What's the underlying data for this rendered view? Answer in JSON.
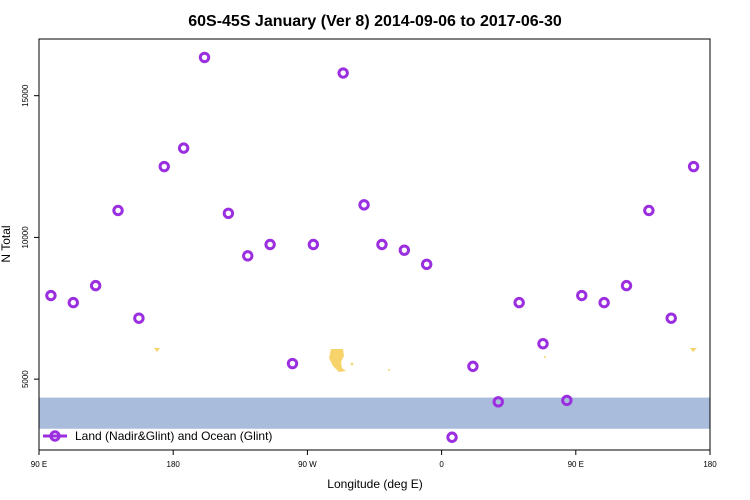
{
  "chart_data": {
    "type": "scatter",
    "title": "60S-45S January (Ver 8)   2014-09-06 to 2017-06-30",
    "xlabel": "Longitude (deg E)",
    "ylabel": "N Total",
    "x_axis": {
      "range_deg_east": [
        90,
        540
      ],
      "tick_values_deg_east": [
        90,
        180,
        270,
        360,
        450,
        540
      ],
      "tick_labels": [
        "90 E",
        "180",
        "90 W",
        "0",
        "90 E",
        "180"
      ]
    },
    "y_axis": {
      "scale": "linear",
      "range": [
        2500,
        17000
      ],
      "tick_values": [
        5000,
        10000,
        15000
      ],
      "tick_labels": [
        "5000",
        "10000",
        "15000"
      ]
    },
    "grid": false,
    "legend": {
      "position": "bottom-left",
      "entries": [
        "Land (Nadir&Glint) and Ocean (Glint)"
      ]
    },
    "series": [
      {
        "name": "Land (Nadir&Glint) and Ocean (Glint)",
        "color": "#9b2fe0",
        "marker": "open-circle",
        "points": [
          {
            "lon": 98,
            "value": 7950
          },
          {
            "lon": 113,
            "value": 7700
          },
          {
            "lon": 128,
            "value": 8300
          },
          {
            "lon": 143,
            "value": 10950
          },
          {
            "lon": 157,
            "value": 7150
          },
          {
            "lon": 174,
            "value": 12500
          },
          {
            "lon": 187,
            "value": 13150
          },
          {
            "lon": 201,
            "value": 16350
          },
          {
            "lon": 217,
            "value": 10850
          },
          {
            "lon": 230,
            "value": 9350
          },
          {
            "lon": 245,
            "value": 9750
          },
          {
            "lon": 260,
            "value": 5550
          },
          {
            "lon": 274,
            "value": 9750
          },
          {
            "lon": 294,
            "value": 15800
          },
          {
            "lon": 308,
            "value": 11150
          },
          {
            "lon": 320,
            "value": 9750
          },
          {
            "lon": 335,
            "value": 9550
          },
          {
            "lon": 350,
            "value": 9050
          },
          {
            "lon": 367,
            "value": 2950
          },
          {
            "lon": 381,
            "value": 5450
          },
          {
            "lon": 398,
            "value": 4200
          },
          {
            "lon": 412,
            "value": 7700
          },
          {
            "lon": 428,
            "value": 6250
          },
          {
            "lon": 444,
            "value": 4250
          },
          {
            "lon": 454,
            "value": 7950
          },
          {
            "lon": 469,
            "value": 7700
          },
          {
            "lon": 484,
            "value": 8300
          },
          {
            "lon": 499,
            "value": 10950
          },
          {
            "lon": 514,
            "value": 7150
          },
          {
            "lon": 529,
            "value": 12500
          }
        ]
      }
    ],
    "latitude_band": {
      "color": "#a9bcdb",
      "land_color": "#f6d36b",
      "y_range": [
        3250,
        4350
      ]
    }
  }
}
